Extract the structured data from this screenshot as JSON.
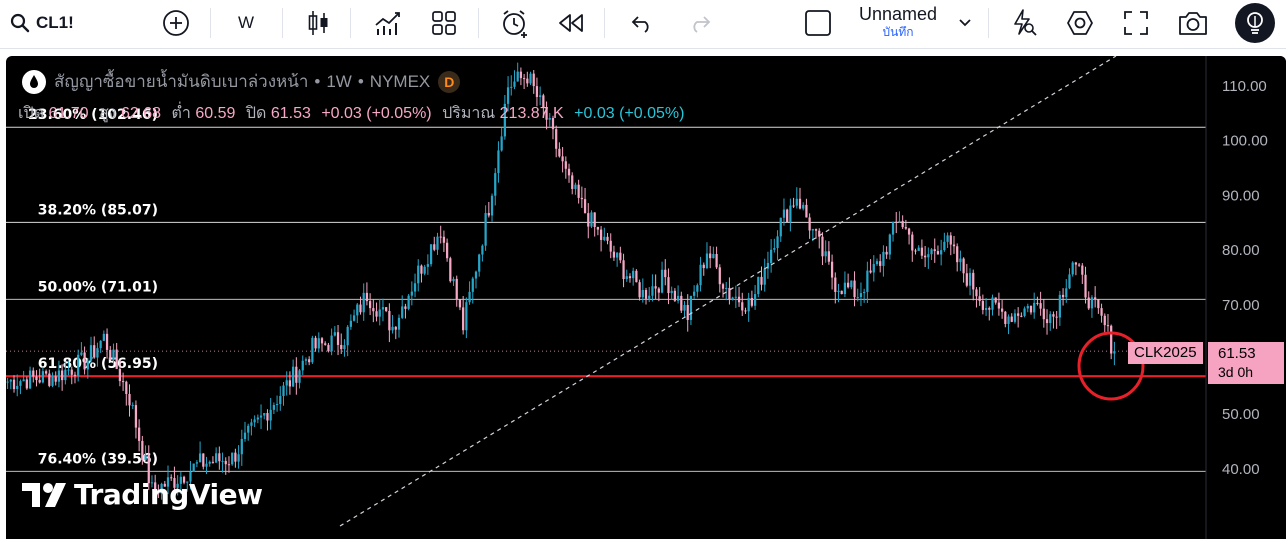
{
  "toolbar": {
    "symbol": "CL1!",
    "interval": "W",
    "layout_name": "Unnamed",
    "layout_status": "บันทึก"
  },
  "legend": {
    "title": "สัญญาซื้อขายน้ำมันดิบเบาล่วงหน้า",
    "dot1": "•",
    "interval": "1W",
    "dot2": "•",
    "exchange": "NYMEX",
    "badge": "D",
    "open_label": "เปิด",
    "open": "61.70",
    "high_label": "สูง",
    "high": "62.68",
    "low_label": "ต่ำ",
    "low": "60.59",
    "close_label": "ปิด",
    "close": "61.53",
    "change": "+0.03 (+0.05%)",
    "volume_label": "ปริมาณ",
    "volume": "213.87 K",
    "volume_change": "+0.03 (+0.05%)"
  },
  "price_label": {
    "price": "61.53",
    "countdown": "3d 0h"
  },
  "symbol_tag": "CLK2025",
  "watermark": "TradingView",
  "colors": {
    "up": "#26a6c9",
    "down": "#f7a8c6",
    "fib_line": "#ffffff",
    "support_line": "#e8202a",
    "highlight_circle": "#e8202a",
    "trendline": "#d1d4dc",
    "accent": "#2962ff"
  },
  "chart_data": {
    "type": "candlestick",
    "interval": "1W",
    "y_axis_ticks": [
      "110.00",
      "100.00",
      "90.00",
      "80.00",
      "70.00",
      "60.00",
      "50.00",
      "40.00"
    ],
    "ylim": [
      34,
      118
    ],
    "last_price": 61.53,
    "fib_levels": [
      {
        "label": "23.60% (102.46)",
        "value": 102.46
      },
      {
        "label": "38.20% (85.07)",
        "value": 85.07
      },
      {
        "label": "50.00% (71.01)",
        "value": 71.01
      },
      {
        "label": "61.80% (56.95)",
        "value": 56.95
      },
      {
        "label": "76.40% (39.56)",
        "value": 39.56
      }
    ],
    "anchors": [
      {
        "i": 0,
        "v": 56
      },
      {
        "i": 15,
        "v": 57
      },
      {
        "i": 25,
        "v": 60
      },
      {
        "i": 30,
        "v": 64
      },
      {
        "i": 38,
        "v": 53
      },
      {
        "i": 45,
        "v": 36
      },
      {
        "i": 52,
        "v": 38
      },
      {
        "i": 60,
        "v": 41
      },
      {
        "i": 70,
        "v": 42
      },
      {
        "i": 80,
        "v": 50
      },
      {
        "i": 88,
        "v": 56
      },
      {
        "i": 95,
        "v": 62
      },
      {
        "i": 105,
        "v": 64
      },
      {
        "i": 112,
        "v": 72
      },
      {
        "i": 120,
        "v": 66
      },
      {
        "i": 128,
        "v": 76
      },
      {
        "i": 135,
        "v": 84
      },
      {
        "i": 142,
        "v": 66
      },
      {
        "i": 150,
        "v": 88
      },
      {
        "i": 156,
        "v": 110
      },
      {
        "i": 162,
        "v": 112
      },
      {
        "i": 168,
        "v": 104
      },
      {
        "i": 175,
        "v": 92
      },
      {
        "i": 183,
        "v": 84
      },
      {
        "i": 190,
        "v": 78
      },
      {
        "i": 198,
        "v": 72
      },
      {
        "i": 205,
        "v": 75
      },
      {
        "i": 212,
        "v": 68
      },
      {
        "i": 218,
        "v": 80
      },
      {
        "i": 225,
        "v": 72
      },
      {
        "i": 232,
        "v": 70
      },
      {
        "i": 240,
        "v": 84
      },
      {
        "i": 246,
        "v": 90
      },
      {
        "i": 252,
        "v": 82
      },
      {
        "i": 258,
        "v": 74
      },
      {
        "i": 265,
        "v": 72
      },
      {
        "i": 272,
        "v": 78
      },
      {
        "i": 278,
        "v": 86
      },
      {
        "i": 285,
        "v": 78
      },
      {
        "i": 292,
        "v": 82
      },
      {
        "i": 298,
        "v": 76
      },
      {
        "i": 305,
        "v": 70
      },
      {
        "i": 312,
        "v": 68
      },
      {
        "i": 320,
        "v": 70
      },
      {
        "i": 326,
        "v": 68
      },
      {
        "i": 332,
        "v": 78
      },
      {
        "i": 338,
        "v": 70
      },
      {
        "i": 342,
        "v": 66
      },
      {
        "i": 345,
        "v": 61.53
      }
    ]
  }
}
